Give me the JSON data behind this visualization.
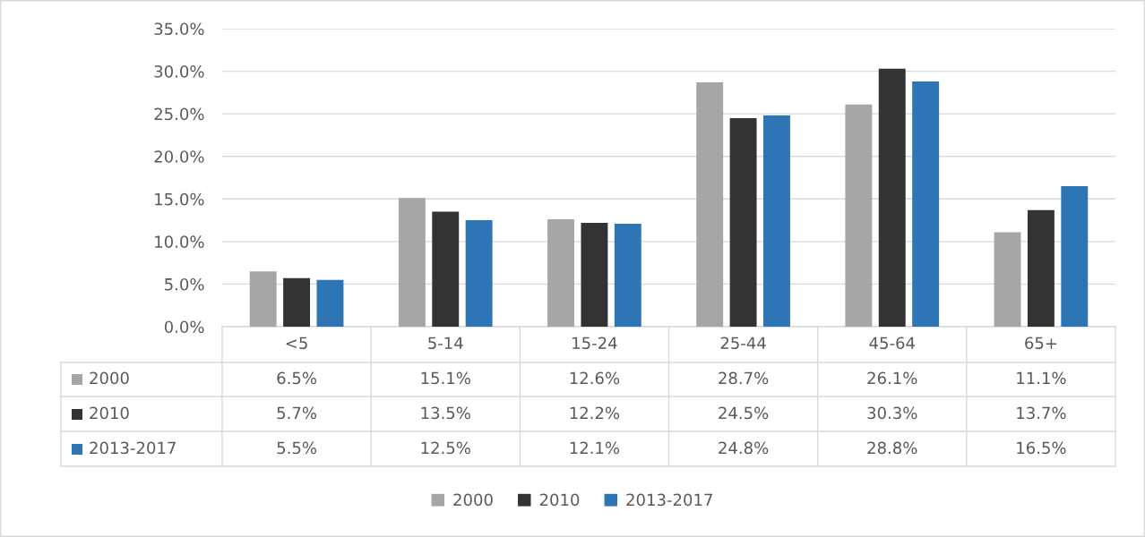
{
  "chart_data": {
    "type": "bar",
    "categories": [
      "<5",
      "5-14",
      "15-24",
      "25-44",
      "45-64",
      "65+"
    ],
    "series": [
      {
        "name": "2000",
        "color": "#a6a6a6",
        "values": [
          6.5,
          15.1,
          12.6,
          28.7,
          26.1,
          11.1
        ],
        "value_labels": [
          "6.5%",
          "15.1%",
          "12.6%",
          "28.7%",
          "26.1%",
          "11.1%"
        ]
      },
      {
        "name": "2010",
        "color": "#333333",
        "values": [
          5.7,
          13.5,
          12.2,
          24.5,
          30.3,
          13.7
        ],
        "value_labels": [
          "5.7%",
          "13.5%",
          "12.2%",
          "24.5%",
          "30.3%",
          "13.7%"
        ]
      },
      {
        "name": "2013-2017",
        "color": "#2e75b6",
        "values": [
          5.5,
          12.5,
          12.1,
          24.8,
          28.8,
          16.5
        ],
        "value_labels": [
          "5.5%",
          "12.5%",
          "12.1%",
          "24.8%",
          "28.8%",
          "16.5%"
        ]
      }
    ],
    "ylim": [
      0,
      35
    ],
    "yticks": [
      {
        "value": 0,
        "label": "0.0%"
      },
      {
        "value": 5,
        "label": "5.0%"
      },
      {
        "value": 10,
        "label": "10.0%"
      },
      {
        "value": 15,
        "label": "15.0%"
      },
      {
        "value": 20,
        "label": "20.0%"
      },
      {
        "value": 25,
        "label": "25.0%"
      },
      {
        "value": 30,
        "label": "30.0%"
      },
      {
        "value": 35,
        "label": "35.0%"
      }
    ],
    "grid": "y",
    "legend": "bottom"
  }
}
